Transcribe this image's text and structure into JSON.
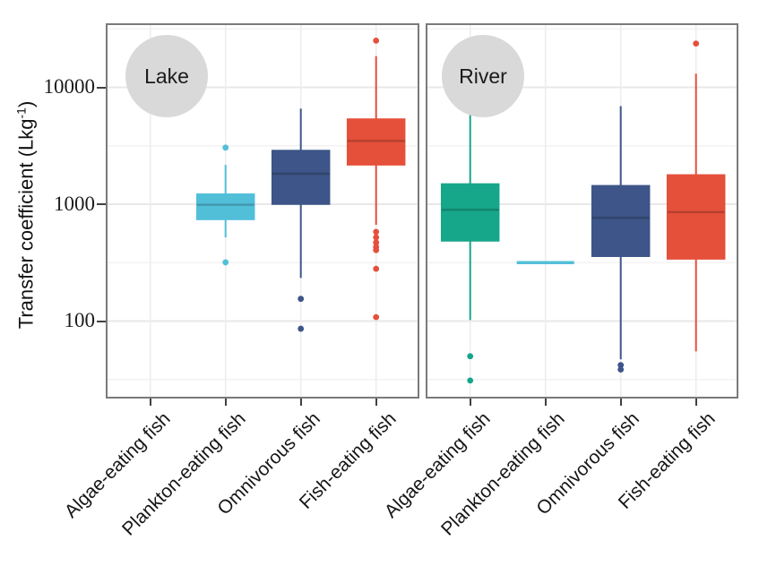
{
  "figure": {
    "background": "#ffffff",
    "panel_border_color": "#7a7a7a",
    "gridline_major_color": "#e8e8e8",
    "gridline_minor_color": "#f3f3f3",
    "badge_color": "#d9d9d9"
  },
  "chart_data": {
    "type": "boxplot",
    "title": "",
    "yaxis": {
      "label": "Transfer coefficient (Lkg⁻¹)",
      "label_prefix": "Transfer coefficient (Lkg",
      "label_sup": "-1",
      "label_suffix": ")",
      "scale": "log10",
      "ylim": [
        22,
        35000
      ],
      "tick_labels": [
        "10000",
        "1000",
        "100"
      ],
      "major_ticks": [
        10000,
        1000,
        100
      ],
      "minor_ticks": [
        31623,
        3162,
        316,
        31.6
      ],
      "grid": true
    },
    "categories": [
      "Algae-eating fish",
      "Plankton-eating fish",
      "Omnivorous fish",
      "Fish-eating fish"
    ],
    "panels": [
      {
        "label": "Lake",
        "boxes": [
          {
            "category": "Algae-eating fish",
            "color": "#16A68A",
            "no_data": true
          },
          {
            "category": "Plankton-eating fish",
            "color": "#52BFD9",
            "whisker_low": 520,
            "q1": 740,
            "median": 990,
            "q3": 1220,
            "whisker_high": 2170,
            "outliers": [
              3050,
              318
            ]
          },
          {
            "category": "Omnivorous fish",
            "color": "#3D5588",
            "whisker_low": 234,
            "q1": 1000,
            "median": 1820,
            "q3": 2880,
            "whisker_high": 6570,
            "outliers": [
              155,
              86
            ]
          },
          {
            "category": "Fish-eating fish",
            "color": "#E5503B",
            "whisker_low": 666,
            "q1": 2170,
            "median": 3480,
            "q3": 5350,
            "whisker_high": 18500,
            "outliers": [
              25100,
              580,
              520,
              470,
              430,
              405,
              280,
              108
            ]
          }
        ]
      },
      {
        "label": "River",
        "boxes": [
          {
            "category": "Algae-eating fish",
            "color": "#16A68A",
            "whisker_low": 102,
            "q1": 485,
            "median": 895,
            "q3": 1490,
            "whisker_high": 5800,
            "outliers": [
              50,
              31
            ]
          },
          {
            "category": "Plankton-eating fish",
            "color": "#52BFD9",
            "whisker_low": 316,
            "q1": 316,
            "median": 316,
            "q3": 316,
            "whisker_high": 316,
            "outliers": []
          },
          {
            "category": "Omnivorous fish",
            "color": "#3D5588",
            "whisker_low": 47,
            "q1": 358,
            "median": 765,
            "q3": 1440,
            "whisker_high": 6900,
            "outliers": [
              42,
              38.5
            ]
          },
          {
            "category": "Fish-eating fish",
            "color": "#E5503B",
            "whisker_low": 55,
            "q1": 340,
            "median": 855,
            "q3": 1780,
            "whisker_high": 13100,
            "outliers": [
              23700
            ]
          }
        ]
      }
    ]
  }
}
